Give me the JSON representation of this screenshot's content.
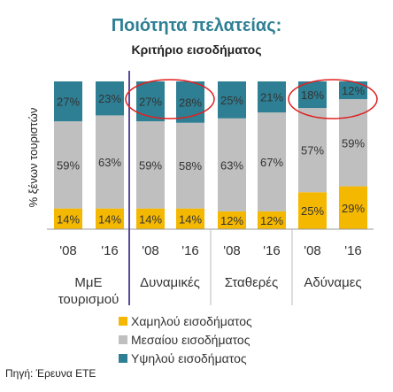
{
  "chart_data": {
    "type": "bar",
    "stacked": true,
    "percent": true,
    "title": "Ποιότητα πελατείας:",
    "subtitle": "Κριτήριο εισοδήματος",
    "ylabel": "% ξένων τουριστών",
    "source": "Πηγή: Έρευνα ΕΤΕ",
    "groups": [
      {
        "name": "ΜμΕ τουρισμού",
        "name_lines": [
          "ΜμΕ",
          "τουρισμού"
        ]
      },
      {
        "name": "Δυναμικές",
        "name_lines": [
          "Δυναμικές"
        ]
      },
      {
        "name": "Σταθερές",
        "name_lines": [
          "Σταθερές"
        ]
      },
      {
        "name": "Αδύναμες",
        "name_lines": [
          "Αδύναμες"
        ]
      }
    ],
    "categories": [
      "'08",
      "'16",
      "'08",
      "'16",
      "'08",
      "'16",
      "'08",
      "'16"
    ],
    "series": [
      {
        "name": "Χαμηλού εισοδήματος",
        "color": "#F5B800",
        "values": [
          14,
          14,
          14,
          14,
          12,
          12,
          25,
          29
        ]
      },
      {
        "name": "Μεσαίου εισοδήματος",
        "color": "#BFBFBF",
        "values": [
          59,
          63,
          59,
          58,
          63,
          67,
          57,
          59
        ]
      },
      {
        "name": "Υψηλού εισοδήματος",
        "color": "#2E7F94",
        "values": [
          27,
          23,
          27,
          28,
          25,
          21,
          18,
          12
        ]
      }
    ],
    "labels": [
      [
        "14%",
        "14%",
        "14%",
        "14%",
        "12%",
        "12%",
        "25%",
        "29%"
      ],
      [
        "59%",
        "63%",
        "59%",
        "58%",
        "63%",
        "67%",
        "57%",
        "59%"
      ],
      [
        "27%",
        "23%",
        "27%",
        "28%",
        "25%",
        "21%",
        "18%",
        "12%"
      ]
    ],
    "ylim": [
      0,
      100
    ],
    "highlighted_groups": [
      1,
      3
    ],
    "title_color": "#2E7F94",
    "highlight_color": "#E02020",
    "divider_color": "#5B4A9B"
  }
}
